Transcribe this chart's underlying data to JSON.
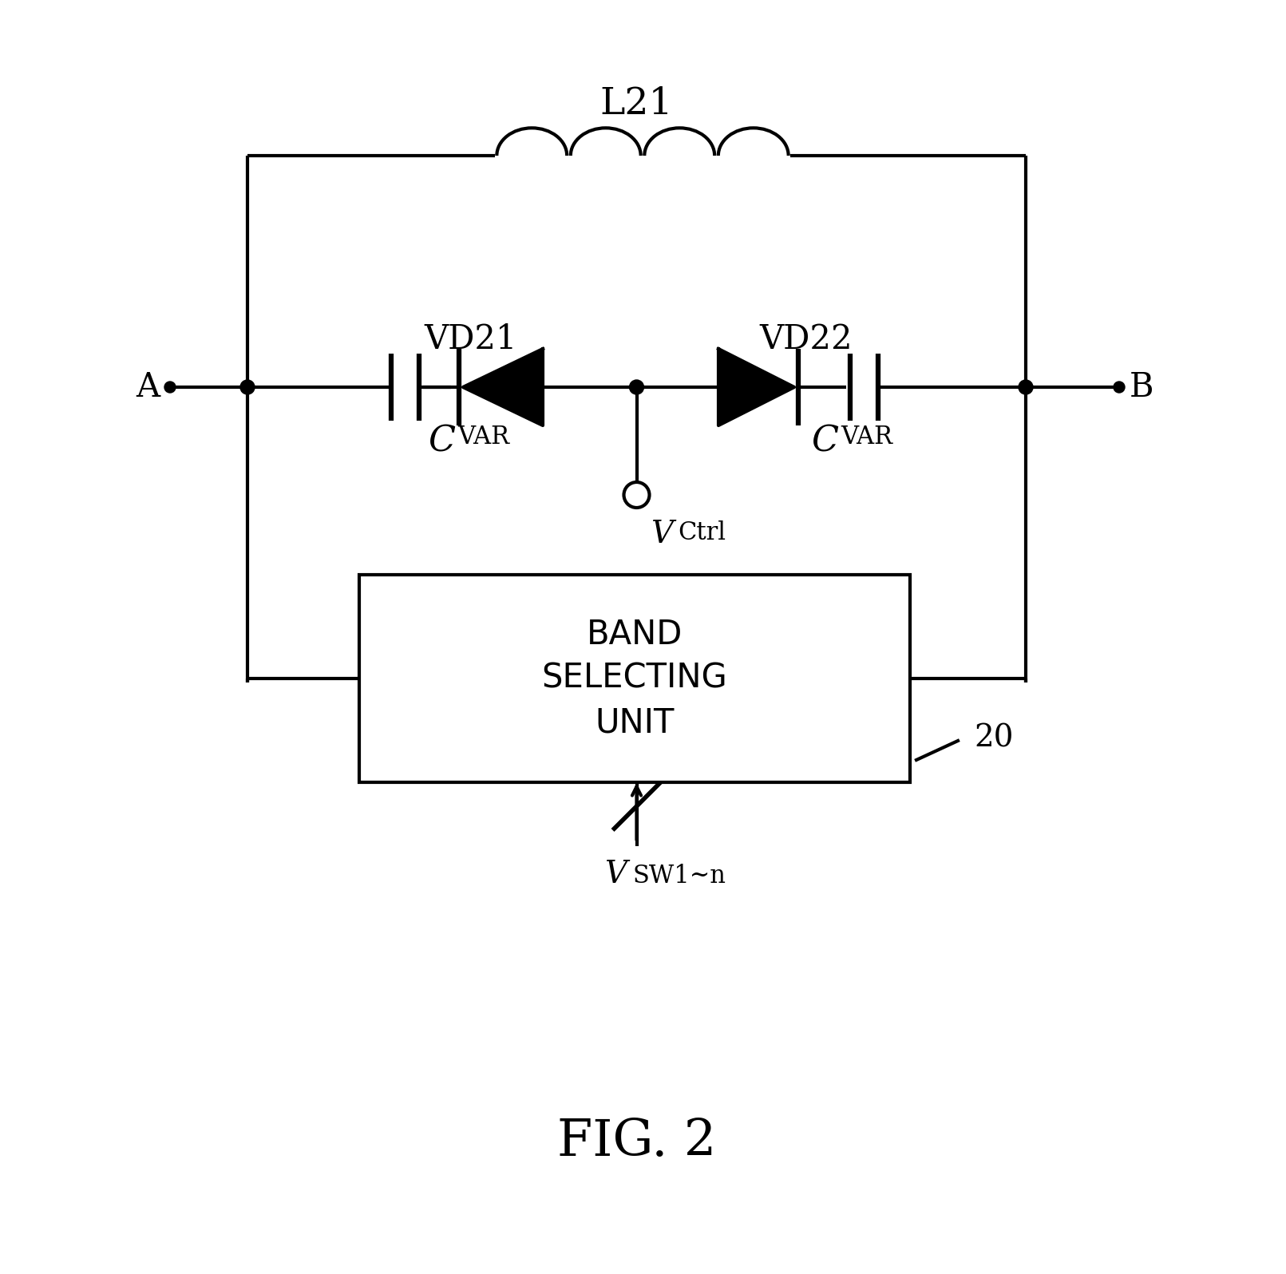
{
  "title": "FIG. 2",
  "label_L21": "L21",
  "label_VD21": "VD21",
  "label_VD22": "VD22",
  "label_CVAR_C": "C",
  "label_CVAR_sub": "VAR",
  "label_VCtrl_V": "V",
  "label_VCtrl_sub": "Ctrl",
  "label_A": "A",
  "label_B": "B",
  "label_BSU_line1": "BAND",
  "label_BSU_line2": "SELECTING",
  "label_BSU_line3": "UNIT",
  "label_20": "20",
  "label_Vsw_V": "V",
  "label_Vsw_sub": "SW1~n",
  "line_color": "#000000",
  "bg_color": "#ffffff",
  "fig_width": 16.11,
  "fig_height": 15.96
}
